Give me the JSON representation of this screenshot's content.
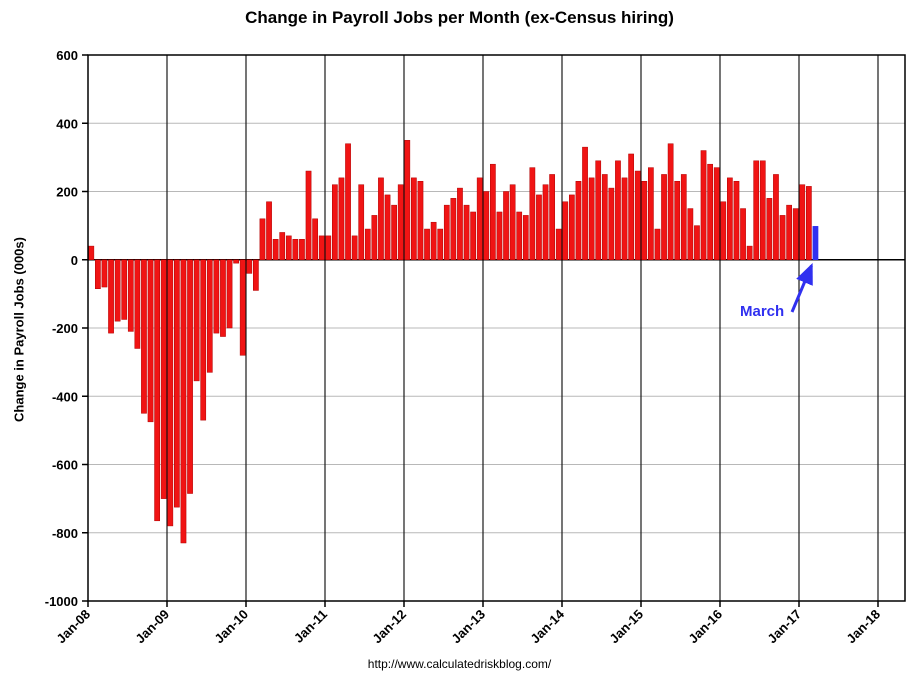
{
  "chart_data": {
    "type": "bar",
    "title": "Change in Payroll Jobs per Month (ex-Census hiring)",
    "ylabel": "Change in Payroll Jobs (000s)",
    "footer_url": "http://www.calculatedriskblog.com/",
    "annotation": {
      "label": "March"
    },
    "x_tick_labels": [
      "Jan-08",
      "Jan-09",
      "Jan-10",
      "Jan-11",
      "Jan-12",
      "Jan-13",
      "Jan-14",
      "Jan-15",
      "Jan-16",
      "Jan-17",
      "Jan-18"
    ],
    "ylim": [
      -1000,
      600
    ],
    "ytick_interval": 200,
    "months_span": 120,
    "bar_color": "#f01414",
    "bar_edge_color": "#b00000",
    "highlight_color": "#3030f0",
    "grid_h_color": "#b8b8b8",
    "grid_v_color": "#1a1a1a",
    "highlight_index": 110,
    "values": [
      40,
      -85,
      -80,
      -215,
      -180,
      -175,
      -210,
      -260,
      -450,
      -475,
      -765,
      -700,
      -780,
      -725,
      -830,
      -685,
      -355,
      -470,
      -330,
      -215,
      -225,
      -200,
      -10,
      -280,
      -40,
      -90,
      120,
      170,
      60,
      80,
      70,
      60,
      60,
      260,
      120,
      70,
      70,
      220,
      240,
      340,
      70,
      220,
      90,
      130,
      240,
      190,
      160,
      220,
      350,
      240,
      230,
      90,
      110,
      90,
      160,
      180,
      210,
      160,
      140,
      240,
      200,
      280,
      140,
      200,
      220,
      140,
      130,
      270,
      190,
      220,
      250,
      90,
      170,
      190,
      230,
      330,
      240,
      290,
      250,
      210,
      290,
      240,
      310,
      260,
      230,
      270,
      90,
      250,
      340,
      230,
      250,
      150,
      100,
      320,
      280,
      270,
      170,
      240,
      230,
      150,
      40,
      290,
      290,
      180,
      250,
      130,
      160,
      150,
      220,
      215,
      98
    ]
  }
}
